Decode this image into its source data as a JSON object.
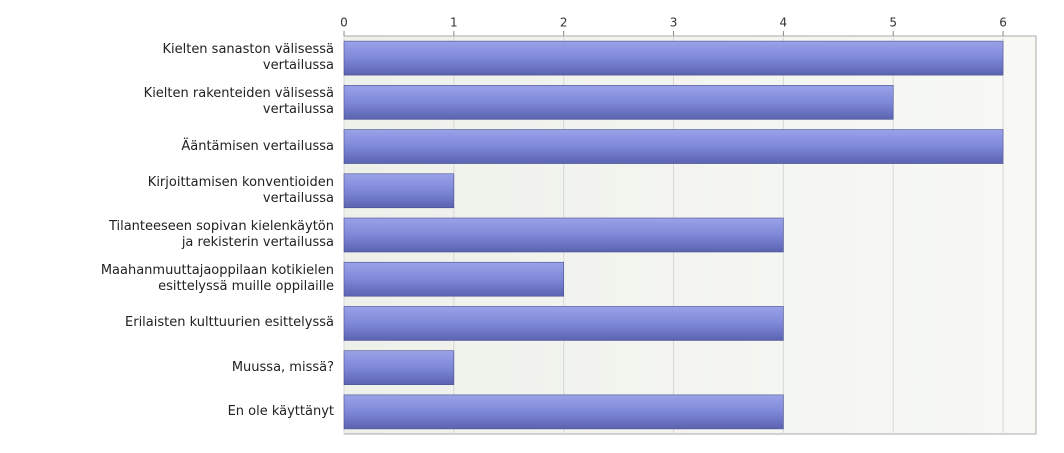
{
  "chart_data": {
    "type": "bar",
    "orientation": "horizontal",
    "categories": [
      "Kielten sanaston välisessä\nvertailussa",
      "Kielten rakenteiden välisessä\nvertailussa",
      "Ääntämisen vertailussa",
      "Kirjoittamisen konventioiden\nvertailussa",
      "Tilanteeseen sopivan kielenkäytön\nja rekisterin vertailussa",
      "Maahanmuuttajaoppilaan kotikielen\nesittelyssä muille oppilaille",
      "Erilaisten kulttuurien esittelyssä",
      "Muussa, missä?",
      "En ole käyttänyt"
    ],
    "values": [
      6,
      5,
      6,
      1,
      4,
      2,
      4,
      1,
      4
    ],
    "color": "#7e88d8",
    "xlim": [
      0,
      6.3
    ],
    "xticks": [
      0,
      1,
      2,
      3,
      4,
      5,
      6
    ],
    "grid": true
  }
}
